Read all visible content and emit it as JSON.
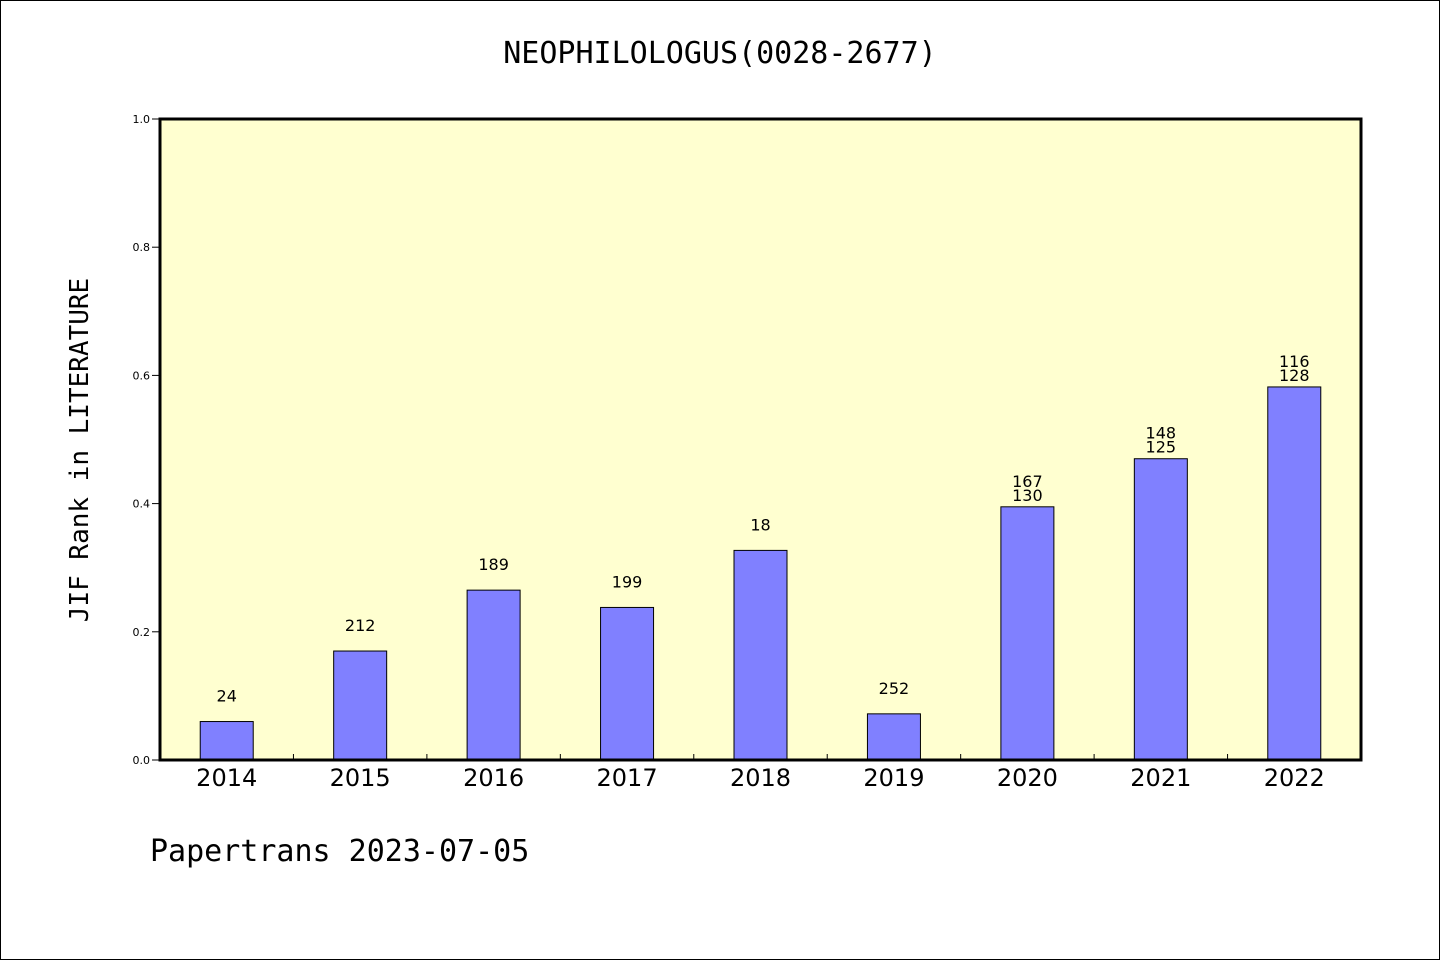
{
  "chart_data": {
    "type": "bar",
    "title": "NEOPHILOLOGUS(0028-2677)",
    "xlabel": "",
    "ylabel": "JIF Rank in LITERATURE",
    "ylim": [
      0,
      1.0
    ],
    "yticks": [
      "0.0",
      "0.2",
      "0.4",
      "0.6",
      "0.8",
      "1.0"
    ],
    "categories": [
      "2014",
      "2015",
      "2016",
      "2017",
      "2018",
      "2019",
      "2020",
      "2021",
      "2022"
    ],
    "values": [
      0.06,
      0.17,
      0.265,
      0.238,
      0.327,
      0.072,
      0.395,
      0.47,
      0.582
    ],
    "bar_labels": [
      [
        "24"
      ],
      [
        "212"
      ],
      [
        "189"
      ],
      [
        "199"
      ],
      [
        "18"
      ],
      [
        "252"
      ],
      [
        "167",
        "130"
      ],
      [
        "148",
        "125"
      ],
      [
        "116",
        "128"
      ]
    ],
    "grid": false,
    "colors": {
      "bar": "#8080ff",
      "plot_background": "#ffffd0",
      "bar_edge": "#000000"
    }
  },
  "footer": "Papertrans 2023-07-05"
}
